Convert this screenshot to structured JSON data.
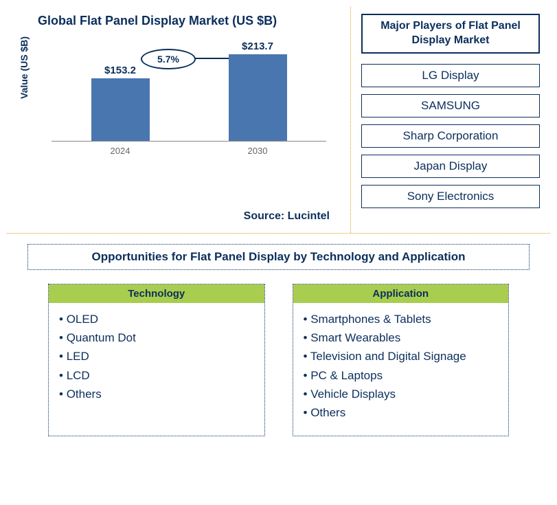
{
  "chart": {
    "title": "Global Flat Panel Display Market (US $B)",
    "y_axis_label": "Value (US $B)",
    "type": "bar",
    "bar_color": "#4a76b0",
    "text_color": "#0b2e5c",
    "axis_color": "#888888",
    "background_color": "#ffffff",
    "bars": [
      {
        "label": "2024",
        "value": 153.2,
        "display": "$153.2",
        "height_pct": 65
      },
      {
        "label": "2030",
        "value": 213.7,
        "display": "$213.7",
        "height_pct": 90
      }
    ],
    "growth_rate": "5.7%",
    "ellipse_border": "#0b2e5c",
    "source": "Source: Lucintel"
  },
  "players": {
    "title": "Major Players of Flat Panel Display Market",
    "border_color": "#0b2e5c",
    "text_color": "#0b2e5c",
    "items": [
      "LG Display",
      "SAMSUNG",
      "Sharp Corporation",
      "Japan Display",
      "Sony Electronics"
    ]
  },
  "opportunities": {
    "title": "Opportunities for Flat Panel Display by Technology and Application",
    "header_bg": "#a8cd4f",
    "border_dotted": "#0b2e5c",
    "text_color": "#0b2e5c",
    "columns": [
      {
        "header": "Technology",
        "items": [
          "OLED",
          "Quantum Dot",
          "LED",
          "LCD",
          "Others"
        ]
      },
      {
        "header": "Application",
        "items": [
          "Smartphones & Tablets",
          "Smart Wearables",
          "Television and Digital Signage",
          "PC & Laptops",
          "Vehicle Displays",
          "Others"
        ]
      }
    ]
  },
  "divider_color": "#d4a017"
}
